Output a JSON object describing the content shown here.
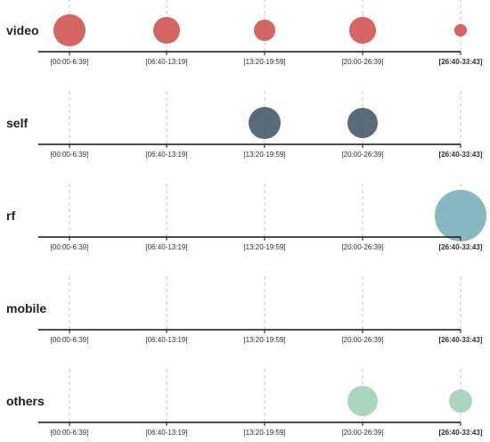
{
  "chart_data": {
    "type": "scatter",
    "title": "",
    "xlabel": "",
    "ylabel": "",
    "categories": [
      "[00:00-6:39]",
      "[06:40-13:19]",
      "[13:20-19:59]",
      "[20:00-26:39]",
      "[26:40-33:43]"
    ],
    "highlighted_category": "[26:40-33:43]",
    "grid": true,
    "series": [
      {
        "name": "video",
        "color": "#cc4a47",
        "values": [
          18,
          15,
          12,
          15,
          7
        ]
      },
      {
        "name": "self",
        "color": "#3e5061",
        "values": [
          0,
          0,
          18,
          17,
          0
        ]
      },
      {
        "name": "rf",
        "color": "#72aab5",
        "values": [
          0,
          0,
          0,
          0,
          29
        ]
      },
      {
        "name": "mobile",
        "color": "#888888",
        "values": [
          0,
          0,
          0,
          0,
          0
        ]
      },
      {
        "name": "others",
        "color": "#9acfb2",
        "values": [
          0,
          0,
          0,
          17,
          13
        ]
      }
    ]
  }
}
